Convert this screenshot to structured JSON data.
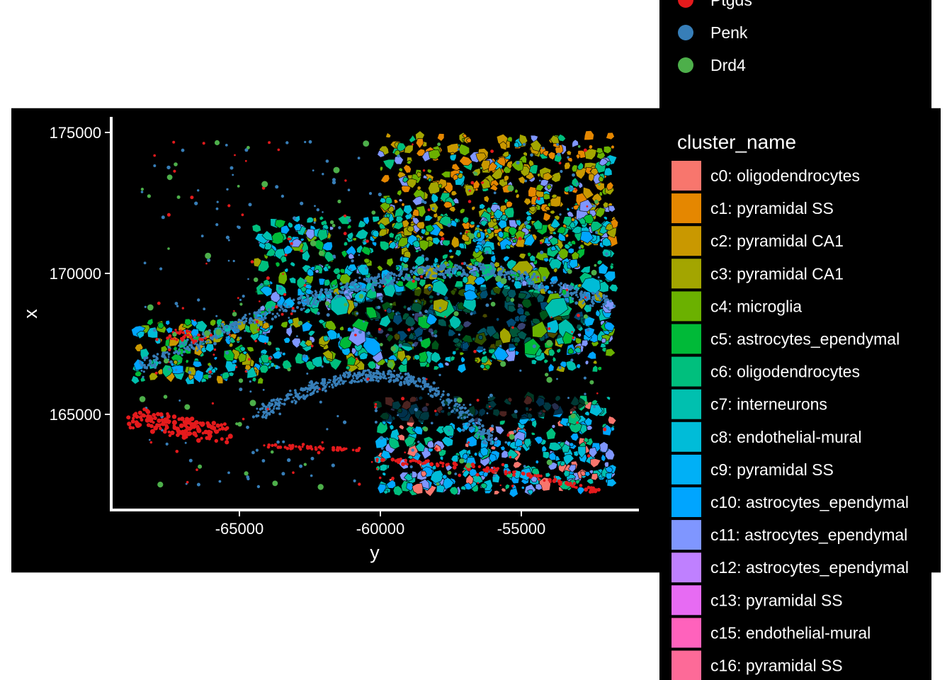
{
  "chart_data": {
    "type": "scatter",
    "title": "",
    "xlabel": "y",
    "ylabel": "x",
    "xlim": [
      -69500,
      -50800
    ],
    "ylim": [
      161500,
      175500
    ],
    "x_ticks": [
      -65000,
      -60000,
      -55000
    ],
    "x_tick_labels": [
      "-65000",
      "-60000",
      "-55000"
    ],
    "y_ticks": [
      165000,
      170000,
      175000
    ],
    "y_tick_labels": [
      "165000",
      "170000",
      "175000"
    ],
    "grid": false,
    "background": "#000000",
    "gene_legend": {
      "entries": [
        {
          "name": "Ptgds",
          "color": "#e41a1c"
        },
        {
          "name": "Penk",
          "color": "#377eb8"
        },
        {
          "name": "Drd4",
          "color": "#4daf4a"
        }
      ]
    },
    "cluster_legend": {
      "title": "cluster_name",
      "entries": [
        {
          "name": "c0: oligodendrocytes",
          "color": "#f8766d"
        },
        {
          "name": "c1: pyramidal SS",
          "color": "#e58700"
        },
        {
          "name": "c2: pyramidal CA1",
          "color": "#c99800"
        },
        {
          "name": "c3: pyramidal CA1",
          "color": "#a3a500"
        },
        {
          "name": "c4: microglia",
          "color": "#6bb100"
        },
        {
          "name": "c5: astrocytes_ependymal",
          "color": "#00ba38"
        },
        {
          "name": "c6: oligodendrocytes",
          "color": "#00bf7d"
        },
        {
          "name": "c7: interneurons",
          "color": "#00c0af"
        },
        {
          "name": "c8: endothelial-mural",
          "color": "#00bcd8"
        },
        {
          "name": "c9: pyramidal SS",
          "color": "#00b0f6"
        },
        {
          "name": "c10: astrocytes_ependymal",
          "color": "#00a5ff"
        },
        {
          "name": "c11: astrocytes_ependymal",
          "color": "#7f96ff"
        },
        {
          "name": "c12: astrocytes_ependymal",
          "color": "#bf80ff"
        },
        {
          "name": "c13: pyramidal SS",
          "color": "#e76bf3"
        },
        {
          "name": "c15: endothelial-mural",
          "color": "#ff62bc"
        },
        {
          "name": "c16: pyramidal SS",
          "color": "#fd6a98"
        }
      ]
    }
  }
}
